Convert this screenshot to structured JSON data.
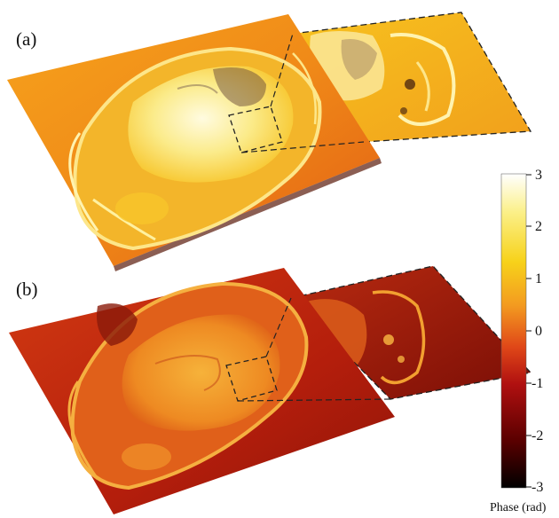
{
  "figure": {
    "panel_a_label": "(a)",
    "panel_b_label": "(b)"
  },
  "colorbar": {
    "title": "Phase (rad)",
    "ticks": [
      "3",
      "2",
      "1",
      "0",
      "-1",
      "-2",
      "-3"
    ],
    "min": -3,
    "max": 3,
    "colors": [
      "#000000",
      "#5a0000",
      "#b01010",
      "#e04818",
      "#f39a20",
      "#f7d21a",
      "#fbf08a",
      "#ffffff"
    ]
  }
}
